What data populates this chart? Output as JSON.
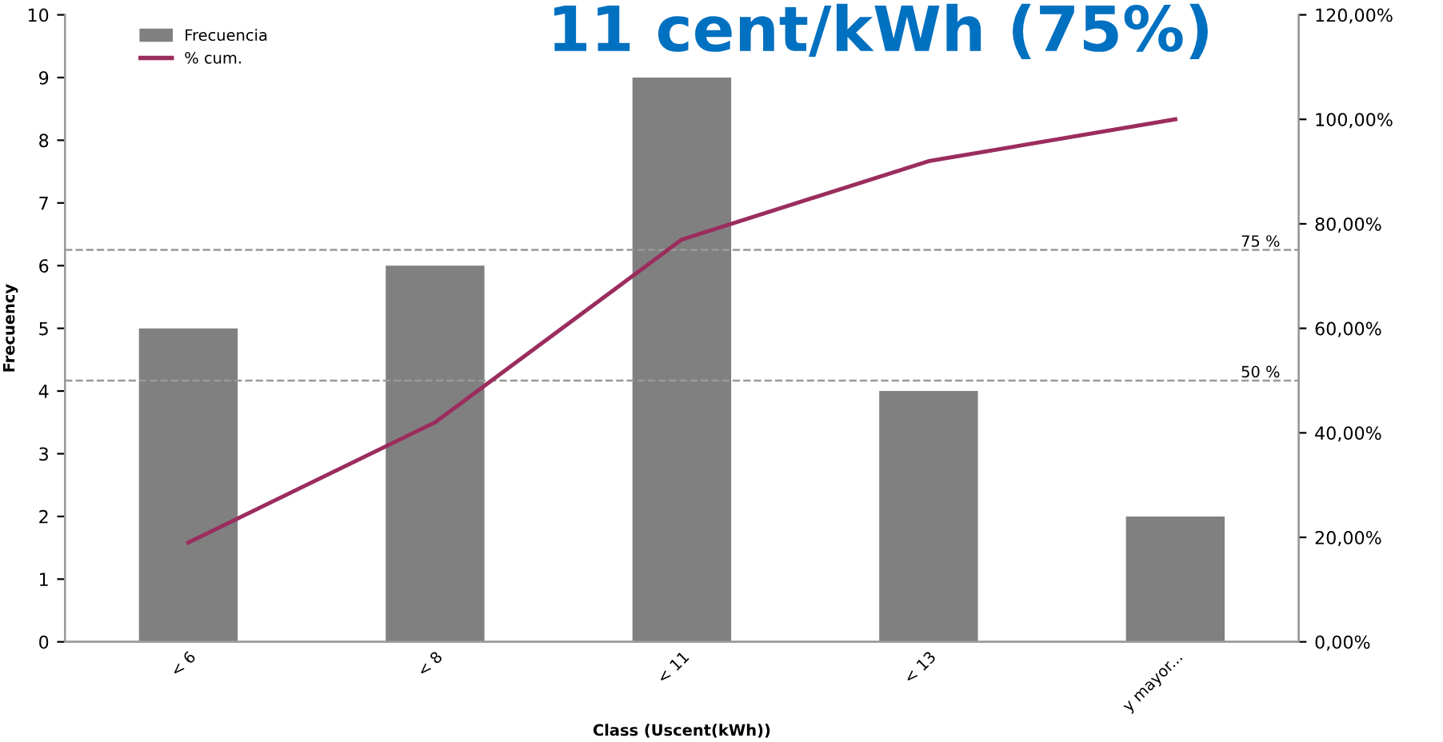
{
  "chart_data": {
    "type": "bar",
    "title": "11 cent/kWh (75%)",
    "xlabel": "Class (Uscent(kWh))",
    "ylabel": "Frecuency",
    "categories": [
      "< 6",
      "< 8",
      "< 11",
      "< 13",
      "y mayor..."
    ],
    "series": [
      {
        "name": "Frecuencia",
        "color": "#808080",
        "values": [
          5,
          6,
          9,
          4,
          2
        ]
      },
      {
        "name": "% cum.",
        "type": "line",
        "axis": "y2",
        "color": "#9b2d5e",
        "values": [
          19,
          42,
          77,
          92,
          100
        ]
      }
    ],
    "ylim": [
      0,
      10
    ],
    "yticks": [
      0,
      1,
      2,
      3,
      4,
      5,
      6,
      7,
      8,
      9,
      10
    ],
    "y2lim": [
      0,
      120
    ],
    "y2ticks": [
      {
        "value": 0,
        "label": "0,00%"
      },
      {
        "value": 20,
        "label": "20,00%"
      },
      {
        "value": 40,
        "label": "40,00%"
      },
      {
        "value": 60,
        "label": "60,00%"
      },
      {
        "value": 80,
        "label": "80,00%"
      },
      {
        "value": 100,
        "label": "100,00%"
      },
      {
        "value": 120,
        "label": "120,00%"
      }
    ],
    "ref_lines": [
      {
        "axis": "y2",
        "value": 75,
        "label": "75 %",
        "color": "#999999",
        "line_style": "dashed"
      },
      {
        "axis": "y2",
        "value": 50,
        "label": "50 %",
        "color": "#999999",
        "line_style": "dashed"
      }
    ],
    "legend": "top left",
    "grid": false,
    "marker": "none",
    "line_style": "solid"
  }
}
